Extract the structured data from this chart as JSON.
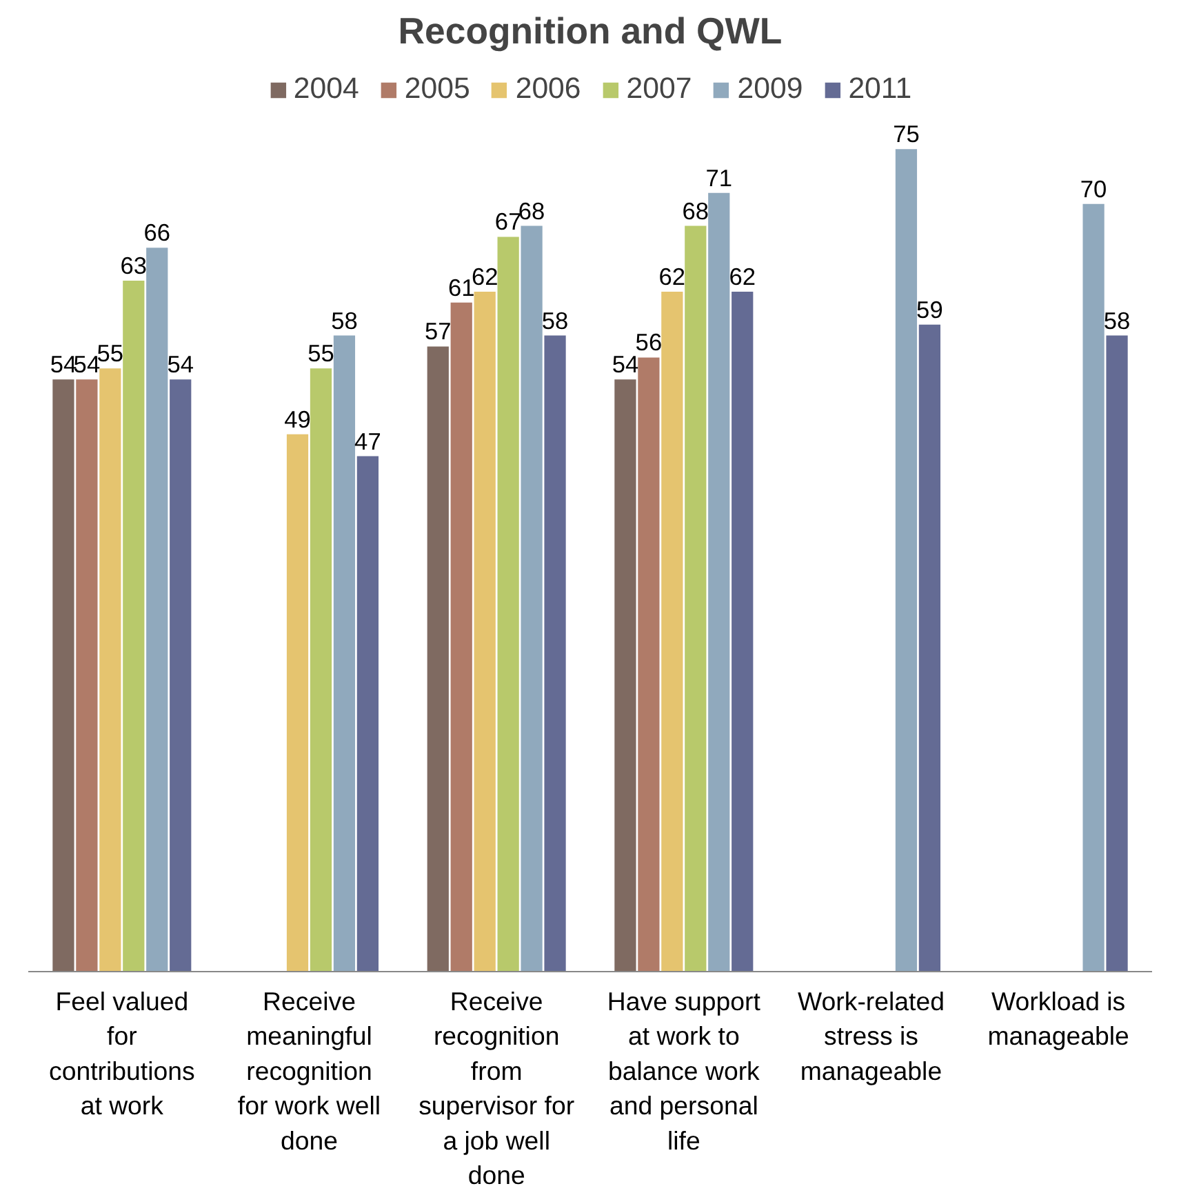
{
  "chart_data": {
    "type": "bar",
    "title": "Recognition and QWL",
    "categories": [
      "Feel valued for contributions at work",
      "Receive meaningful recognition for work well done",
      "Receive recognition from supervisor for a job well done",
      "Have support at work to balance work and personal life",
      "Work-related stress is manageable",
      "Workload is manageable"
    ],
    "series": [
      {
        "name": "2004",
        "color": "#7f6a61",
        "values": [
          54,
          null,
          57,
          54,
          null,
          null
        ]
      },
      {
        "name": "2005",
        "color": "#b07b68",
        "values": [
          54,
          null,
          61,
          56,
          null,
          null
        ]
      },
      {
        "name": "2006",
        "color": "#e5c46f",
        "values": [
          55,
          49,
          62,
          62,
          null,
          null
        ]
      },
      {
        "name": "2007",
        "color": "#b8c96b",
        "values": [
          63,
          55,
          67,
          68,
          null,
          null
        ]
      },
      {
        "name": "2009",
        "color": "#90a9bd",
        "values": [
          66,
          58,
          68,
          71,
          75,
          70
        ]
      },
      {
        "name": "2011",
        "color": "#646b94",
        "values": [
          54,
          47,
          58,
          62,
          59,
          58
        ]
      }
    ],
    "tick_labels": "x",
    "data_labels": true,
    "legend": "top",
    "grid": false
  }
}
